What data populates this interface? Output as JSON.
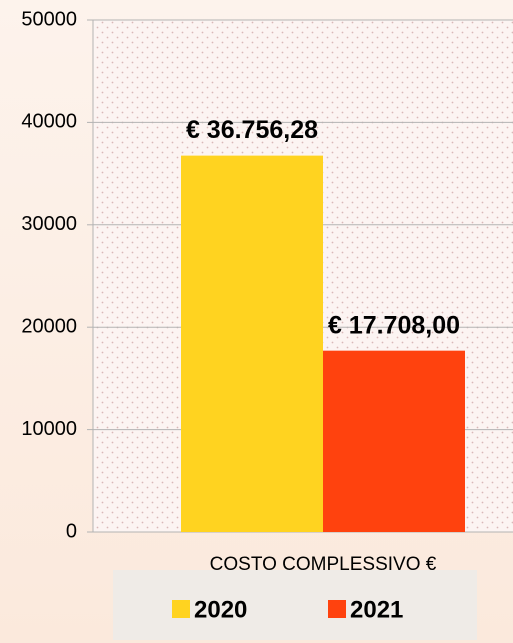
{
  "chart_data": {
    "type": "bar",
    "categories": [
      "COSTO COMPLESSIVO €"
    ],
    "series": [
      {
        "name": "2020",
        "color": "#ffd320",
        "values": [
          36756.28
        ],
        "value_labels": [
          "€ 36.756,28"
        ]
      },
      {
        "name": "2021",
        "color": "#ff420e",
        "values": [
          17708.0
        ],
        "value_labels": [
          "€ 17.708,00"
        ]
      }
    ],
    "ylim": [
      0,
      50000
    ],
    "yticks": [
      0,
      10000,
      20000,
      30000,
      40000,
      50000
    ],
    "grid": true,
    "legend": "bottom"
  }
}
